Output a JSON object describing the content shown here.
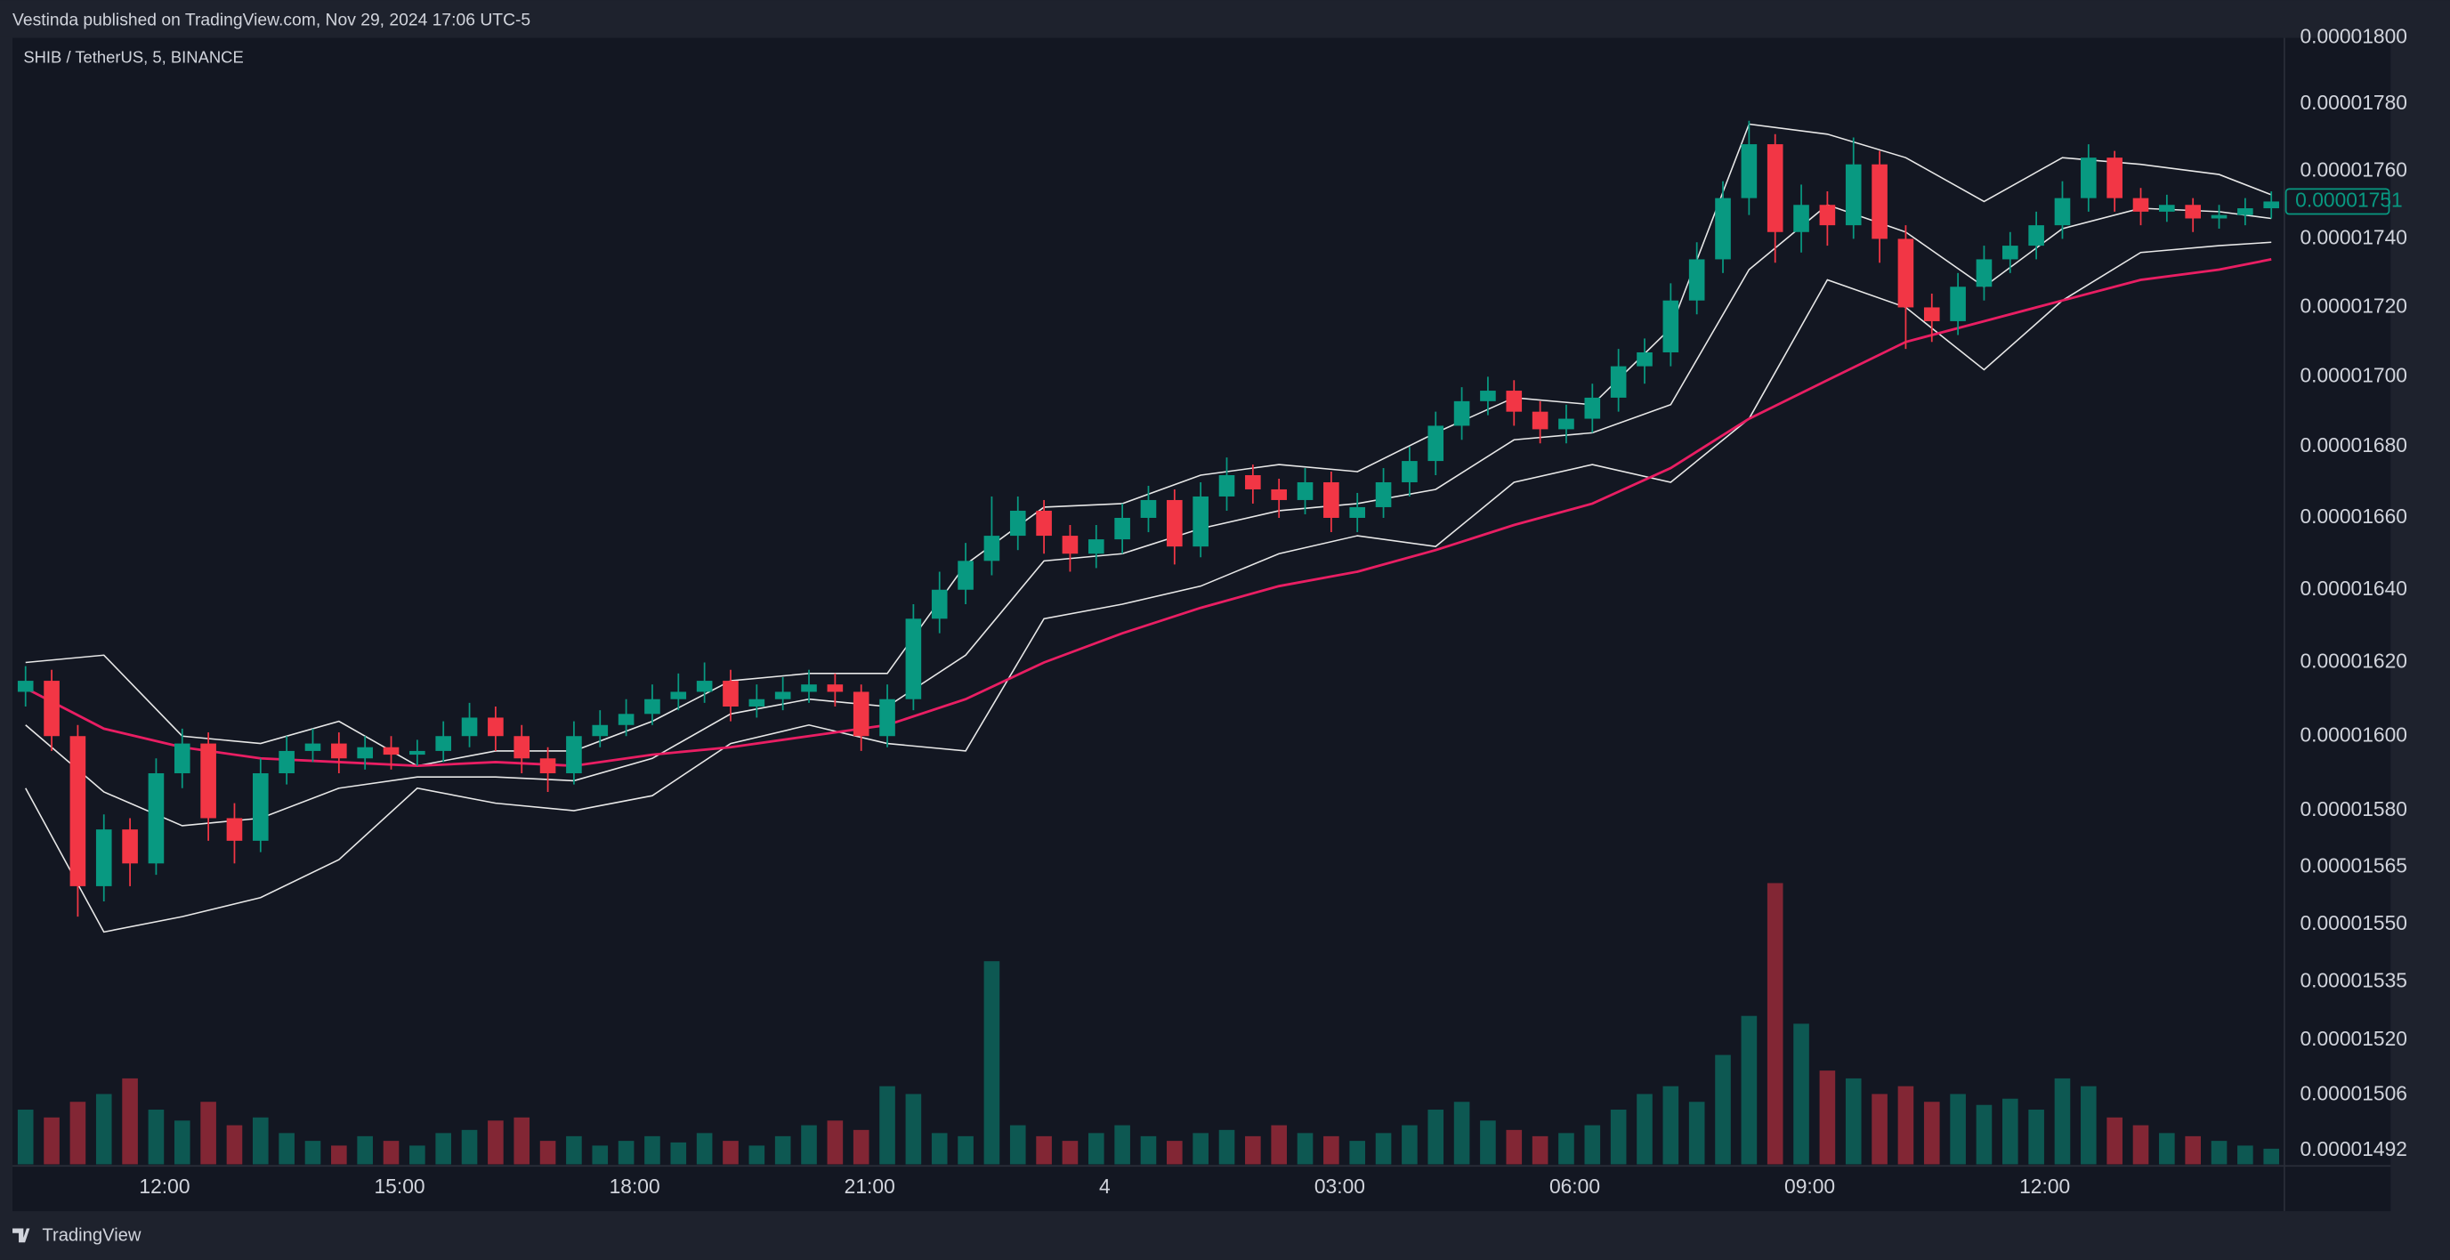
{
  "header": {
    "text": "Vestinda published on TradingView.com, Nov 29, 2024 17:06 UTC-5"
  },
  "footer": {
    "brand": "TradingView"
  },
  "chart_data": {
    "type": "candlestick",
    "legend": "SHIB / TetherUS, 5, BINANCE",
    "x": [
      0,
      4,
      8,
      12,
      16,
      20,
      24,
      28,
      32,
      36,
      40,
      44,
      48,
      52,
      56,
      60,
      64,
      68,
      72,
      76,
      80,
      84,
      88,
      92,
      96,
      100,
      104,
      108,
      112,
      116,
      120,
      124,
      128,
      132,
      136,
      140,
      144,
      148,
      152,
      156,
      160,
      164,
      168,
      172,
      176,
      180,
      184,
      188,
      192,
      196,
      200,
      204,
      208,
      212,
      216,
      220,
      224,
      228,
      232,
      236,
      240,
      244,
      248,
      252,
      256,
      260,
      264,
      268,
      272,
      276,
      280,
      284,
      288,
      292,
      296,
      300,
      304,
      308,
      312,
      316,
      320,
      324,
      328,
      332,
      336,
      340,
      344
    ],
    "open": [
      1.612e-05,
      1.615e-05,
      1.6e-05,
      1.56e-05,
      1.575e-05,
      1.566e-05,
      1.59e-05,
      1.598e-05,
      1.578e-05,
      1.572e-05,
      1.59e-05,
      1.596e-05,
      1.598e-05,
      1.594e-05,
      1.597e-05,
      1.595e-05,
      1.596e-05,
      1.6e-05,
      1.605e-05,
      1.6e-05,
      1.594e-05,
      1.59e-05,
      1.6e-05,
      1.603e-05,
      1.606e-05,
      1.61e-05,
      1.612e-05,
      1.615e-05,
      1.608e-05,
      1.61e-05,
      1.612e-05,
      1.614e-05,
      1.612e-05,
      1.6e-05,
      1.61e-05,
      1.632e-05,
      1.64e-05,
      1.648e-05,
      1.655e-05,
      1.662e-05,
      1.655e-05,
      1.65e-05,
      1.654e-05,
      1.66e-05,
      1.665e-05,
      1.652e-05,
      1.666e-05,
      1.672e-05,
      1.668e-05,
      1.665e-05,
      1.67e-05,
      1.66e-05,
      1.663e-05,
      1.67e-05,
      1.676e-05,
      1.686e-05,
      1.693e-05,
      1.696e-05,
      1.69e-05,
      1.685e-05,
      1.688e-05,
      1.694e-05,
      1.703e-05,
      1.707e-05,
      1.722e-05,
      1.734e-05,
      1.752e-05,
      1.768e-05,
      1.742e-05,
      1.75e-05,
      1.744e-05,
      1.762e-05,
      1.74e-05,
      1.72e-05,
      1.716e-05,
      1.726e-05,
      1.734e-05,
      1.738e-05,
      1.744e-05,
      1.752e-05,
      1.764e-05,
      1.752e-05,
      1.748e-05,
      1.75e-05,
      1.746e-05,
      1.747e-05,
      1.749e-05
    ],
    "high": [
      1.619e-05,
      1.618e-05,
      1.603e-05,
      1.579e-05,
      1.578e-05,
      1.594e-05,
      1.602e-05,
      1.601e-05,
      1.582e-05,
      1.594e-05,
      1.6e-05,
      1.602e-05,
      1.601e-05,
      1.6e-05,
      1.6e-05,
      1.599e-05,
      1.604e-05,
      1.609e-05,
      1.608e-05,
      1.603e-05,
      1.597e-05,
      1.604e-05,
      1.607e-05,
      1.61e-05,
      1.614e-05,
      1.617e-05,
      1.62e-05,
      1.618e-05,
      1.614e-05,
      1.616e-05,
      1.618e-05,
      1.617e-05,
      1.614e-05,
      1.614e-05,
      1.636e-05,
      1.645e-05,
      1.653e-05,
      1.666e-05,
      1.666e-05,
      1.665e-05,
      1.658e-05,
      1.658e-05,
      1.664e-05,
      1.669e-05,
      1.668e-05,
      1.67e-05,
      1.677e-05,
      1.675e-05,
      1.671e-05,
      1.674e-05,
      1.673e-05,
      1.667e-05,
      1.674e-05,
      1.68e-05,
      1.69e-05,
      1.697e-05,
      1.7e-05,
      1.699e-05,
      1.693e-05,
      1.692e-05,
      1.698e-05,
      1.708e-05,
      1.711e-05,
      1.727e-05,
      1.739e-05,
      1.757e-05,
      1.775e-05,
      1.771e-05,
      1.756e-05,
      1.754e-05,
      1.77e-05,
      1.766e-05,
      1.744e-05,
      1.724e-05,
      1.73e-05,
      1.738e-05,
      1.742e-05,
      1.748e-05,
      1.757e-05,
      1.768e-05,
      1.766e-05,
      1.755e-05,
      1.753e-05,
      1.752e-05,
      1.75e-05,
      1.752e-05,
      1.754e-05
    ],
    "low": [
      1.608e-05,
      1.596e-05,
      1.552e-05,
      1.556e-05,
      1.56e-05,
      1.563e-05,
      1.586e-05,
      1.572e-05,
      1.566e-05,
      1.569e-05,
      1.587e-05,
      1.593e-05,
      1.59e-05,
      1.591e-05,
      1.591e-05,
      1.592e-05,
      1.593e-05,
      1.597e-05,
      1.596e-05,
      1.59e-05,
      1.585e-05,
      1.587e-05,
      1.597e-05,
      1.6e-05,
      1.603e-05,
      1.607e-05,
      1.609e-05,
      1.604e-05,
      1.605e-05,
      1.607e-05,
      1.609e-05,
      1.608e-05,
      1.596e-05,
      1.597e-05,
      1.607e-05,
      1.628e-05,
      1.636e-05,
      1.644e-05,
      1.651e-05,
      1.65e-05,
      1.645e-05,
      1.646e-05,
      1.65e-05,
      1.656e-05,
      1.647e-05,
      1.649e-05,
      1.662e-05,
      1.664e-05,
      1.66e-05,
      1.661e-05,
      1.656e-05,
      1.656e-05,
      1.66e-05,
      1.666e-05,
      1.672e-05,
      1.682e-05,
      1.689e-05,
      1.686e-05,
      1.681e-05,
      1.681e-05,
      1.684e-05,
      1.69e-05,
      1.698e-05,
      1.703e-05,
      1.718e-05,
      1.73e-05,
      1.747e-05,
      1.733e-05,
      1.736e-05,
      1.738e-05,
      1.74e-05,
      1.733e-05,
      1.708e-05,
      1.71e-05,
      1.712e-05,
      1.722e-05,
      1.73e-05,
      1.734e-05,
      1.74e-05,
      1.748e-05,
      1.748e-05,
      1.744e-05,
      1.745e-05,
      1.742e-05,
      1.743e-05,
      1.744e-05,
      1.746e-05
    ],
    "close": [
      1.615e-05,
      1.6e-05,
      1.56e-05,
      1.575e-05,
      1.566e-05,
      1.59e-05,
      1.598e-05,
      1.578e-05,
      1.572e-05,
      1.59e-05,
      1.596e-05,
      1.598e-05,
      1.594e-05,
      1.597e-05,
      1.595e-05,
      1.596e-05,
      1.6e-05,
      1.605e-05,
      1.6e-05,
      1.594e-05,
      1.59e-05,
      1.6e-05,
      1.603e-05,
      1.606e-05,
      1.61e-05,
      1.612e-05,
      1.615e-05,
      1.608e-05,
      1.61e-05,
      1.612e-05,
      1.614e-05,
      1.612e-05,
      1.6e-05,
      1.61e-05,
      1.632e-05,
      1.64e-05,
      1.648e-05,
      1.655e-05,
      1.662e-05,
      1.655e-05,
      1.65e-05,
      1.654e-05,
      1.66e-05,
      1.665e-05,
      1.652e-05,
      1.666e-05,
      1.672e-05,
      1.668e-05,
      1.665e-05,
      1.67e-05,
      1.66e-05,
      1.663e-05,
      1.67e-05,
      1.676e-05,
      1.686e-05,
      1.693e-05,
      1.696e-05,
      1.69e-05,
      1.685e-05,
      1.688e-05,
      1.694e-05,
      1.703e-05,
      1.707e-05,
      1.722e-05,
      1.734e-05,
      1.752e-05,
      1.768e-05,
      1.742e-05,
      1.75e-05,
      1.744e-05,
      1.762e-05,
      1.74e-05,
      1.72e-05,
      1.716e-05,
      1.726e-05,
      1.734e-05,
      1.738e-05,
      1.744e-05,
      1.752e-05,
      1.764e-05,
      1.752e-05,
      1.748e-05,
      1.75e-05,
      1.746e-05,
      1.747e-05,
      1.749e-05,
      1.751e-05
    ],
    "volume": [
      35,
      30,
      40,
      45,
      55,
      35,
      28,
      40,
      25,
      30,
      20,
      15,
      12,
      18,
      15,
      12,
      20,
      22,
      28,
      30,
      15,
      18,
      12,
      15,
      18,
      14,
      20,
      15,
      12,
      18,
      25,
      28,
      22,
      50,
      45,
      20,
      18,
      130,
      25,
      18,
      15,
      20,
      25,
      18,
      15,
      20,
      22,
      18,
      25,
      20,
      18,
      15,
      20,
      25,
      35,
      40,
      28,
      22,
      18,
      20,
      25,
      35,
      45,
      50,
      40,
      70,
      95,
      180,
      90,
      60,
      55,
      45,
      50,
      40,
      45,
      38,
      42,
      35,
      55,
      50,
      30,
      25,
      20,
      18,
      15,
      12,
      10
    ],
    "up_color": "#089981",
    "down_color": "#f23645",
    "overlay_x": [
      0,
      12,
      24,
      36,
      48,
      60,
      72,
      84,
      96,
      108,
      120,
      132,
      144,
      156,
      168,
      180,
      192,
      204,
      216,
      228,
      240,
      252,
      264,
      276,
      288,
      300,
      312,
      324,
      336,
      344
    ],
    "overlays": [
      {
        "color": "#e8e8e8",
        "values": [
          1.62e-05,
          1.622e-05,
          1.6e-05,
          1.598e-05,
          1.604e-05,
          1.592e-05,
          1.596e-05,
          1.596e-05,
          1.604e-05,
          1.615e-05,
          1.617e-05,
          1.617e-05,
          1.647e-05,
          1.663e-05,
          1.664e-05,
          1.672e-05,
          1.675e-05,
          1.673e-05,
          1.684e-05,
          1.694e-05,
          1.692e-05,
          1.714e-05,
          1.774e-05,
          1.771e-05,
          1.764e-05,
          1.751e-05,
          1.764e-05,
          1.762e-05,
          1.759e-05,
          1.753e-05
        ]
      },
      {
        "color": "#e8e8e8",
        "values": [
          1.603e-05,
          1.585e-05,
          1.576e-05,
          1.578e-05,
          1.586e-05,
          1.589e-05,
          1.589e-05,
          1.588e-05,
          1.594e-05,
          1.606e-05,
          1.61e-05,
          1.608e-05,
          1.622e-05,
          1.648e-05,
          1.65e-05,
          1.657e-05,
          1.662e-05,
          1.664e-05,
          1.668e-05,
          1.682e-05,
          1.684e-05,
          1.692e-05,
          1.731e-05,
          1.75e-05,
          1.742e-05,
          1.726e-05,
          1.743e-05,
          1.749e-05,
          1.748e-05,
          1.746e-05
        ]
      },
      {
        "color": "#e8e8e8",
        "values": [
          1.586e-05,
          1.548e-05,
          1.552e-05,
          1.557e-05,
          1.567e-05,
          1.586e-05,
          1.582e-05,
          1.58e-05,
          1.584e-05,
          1.598e-05,
          1.603e-05,
          1.598e-05,
          1.596e-05,
          1.632e-05,
          1.636e-05,
          1.641e-05,
          1.65e-05,
          1.655e-05,
          1.652e-05,
          1.67e-05,
          1.675e-05,
          1.67e-05,
          1.688e-05,
          1.728e-05,
          1.72e-05,
          1.702e-05,
          1.722e-05,
          1.736e-05,
          1.738e-05,
          1.739e-05
        ]
      },
      {
        "color": "#e91e63",
        "values": [
          1.613e-05,
          1.602e-05,
          1.597e-05,
          1.594e-05,
          1.593e-05,
          1.592e-05,
          1.593e-05,
          1.592e-05,
          1.595e-05,
          1.597e-05,
          1.6e-05,
          1.603e-05,
          1.61e-05,
          1.62e-05,
          1.628e-05,
          1.635e-05,
          1.641e-05,
          1.645e-05,
          1.651e-05,
          1.658e-05,
          1.664e-05,
          1.674e-05,
          1.688e-05,
          1.699e-05,
          1.71e-05,
          1.716e-05,
          1.722e-05,
          1.728e-05,
          1.731e-05,
          1.734e-05
        ]
      }
    ],
    "xlim": [
      -2,
      346
    ],
    "xticks": [
      {
        "value": 21.3,
        "label": "12:00"
      },
      {
        "value": 57.3,
        "label": "15:00"
      },
      {
        "value": 93.3,
        "label": "18:00"
      },
      {
        "value": 129.3,
        "label": "21:00"
      },
      {
        "value": 165.3,
        "label": "4"
      },
      {
        "value": 201.3,
        "label": "03:00"
      },
      {
        "value": 237.3,
        "label": "06:00"
      },
      {
        "value": 273.3,
        "label": "09:00"
      },
      {
        "value": 309.3,
        "label": "12:00"
      }
    ],
    "ylim": [
      1.4885e-05,
      1.8e-05
    ],
    "log_scale": true,
    "yticks": [
      {
        "value": 1.8e-05,
        "label": "0.00001800"
      },
      {
        "value": 1.78e-05,
        "label": "0.00001780"
      },
      {
        "value": 1.76e-05,
        "label": "0.00001760"
      },
      {
        "value": 1.74e-05,
        "label": "0.00001740"
      },
      {
        "value": 1.72e-05,
        "label": "0.00001720"
      },
      {
        "value": 1.7e-05,
        "label": "0.00001700"
      },
      {
        "value": 1.68e-05,
        "label": "0.00001680"
      },
      {
        "value": 1.66e-05,
        "label": "0.00001660"
      },
      {
        "value": 1.64e-05,
        "label": "0.00001640"
      },
      {
        "value": 1.62e-05,
        "label": "0.00001620"
      },
      {
        "value": 1.6e-05,
        "label": "0.00001600"
      },
      {
        "value": 1.58e-05,
        "label": "0.00001580"
      },
      {
        "value": 1.565e-05,
        "label": "0.00001565"
      },
      {
        "value": 1.55e-05,
        "label": "0.00001550"
      },
      {
        "value": 1.535e-05,
        "label": "0.00001535"
      },
      {
        "value": 1.52e-05,
        "label": "0.00001520"
      },
      {
        "value": 1.506e-05,
        "label": "0.00001506"
      },
      {
        "value": 1.492e-05,
        "label": "0.00001492"
      }
    ],
    "last_price": {
      "value": 1.751e-05,
      "label": "0.00001751"
    }
  }
}
